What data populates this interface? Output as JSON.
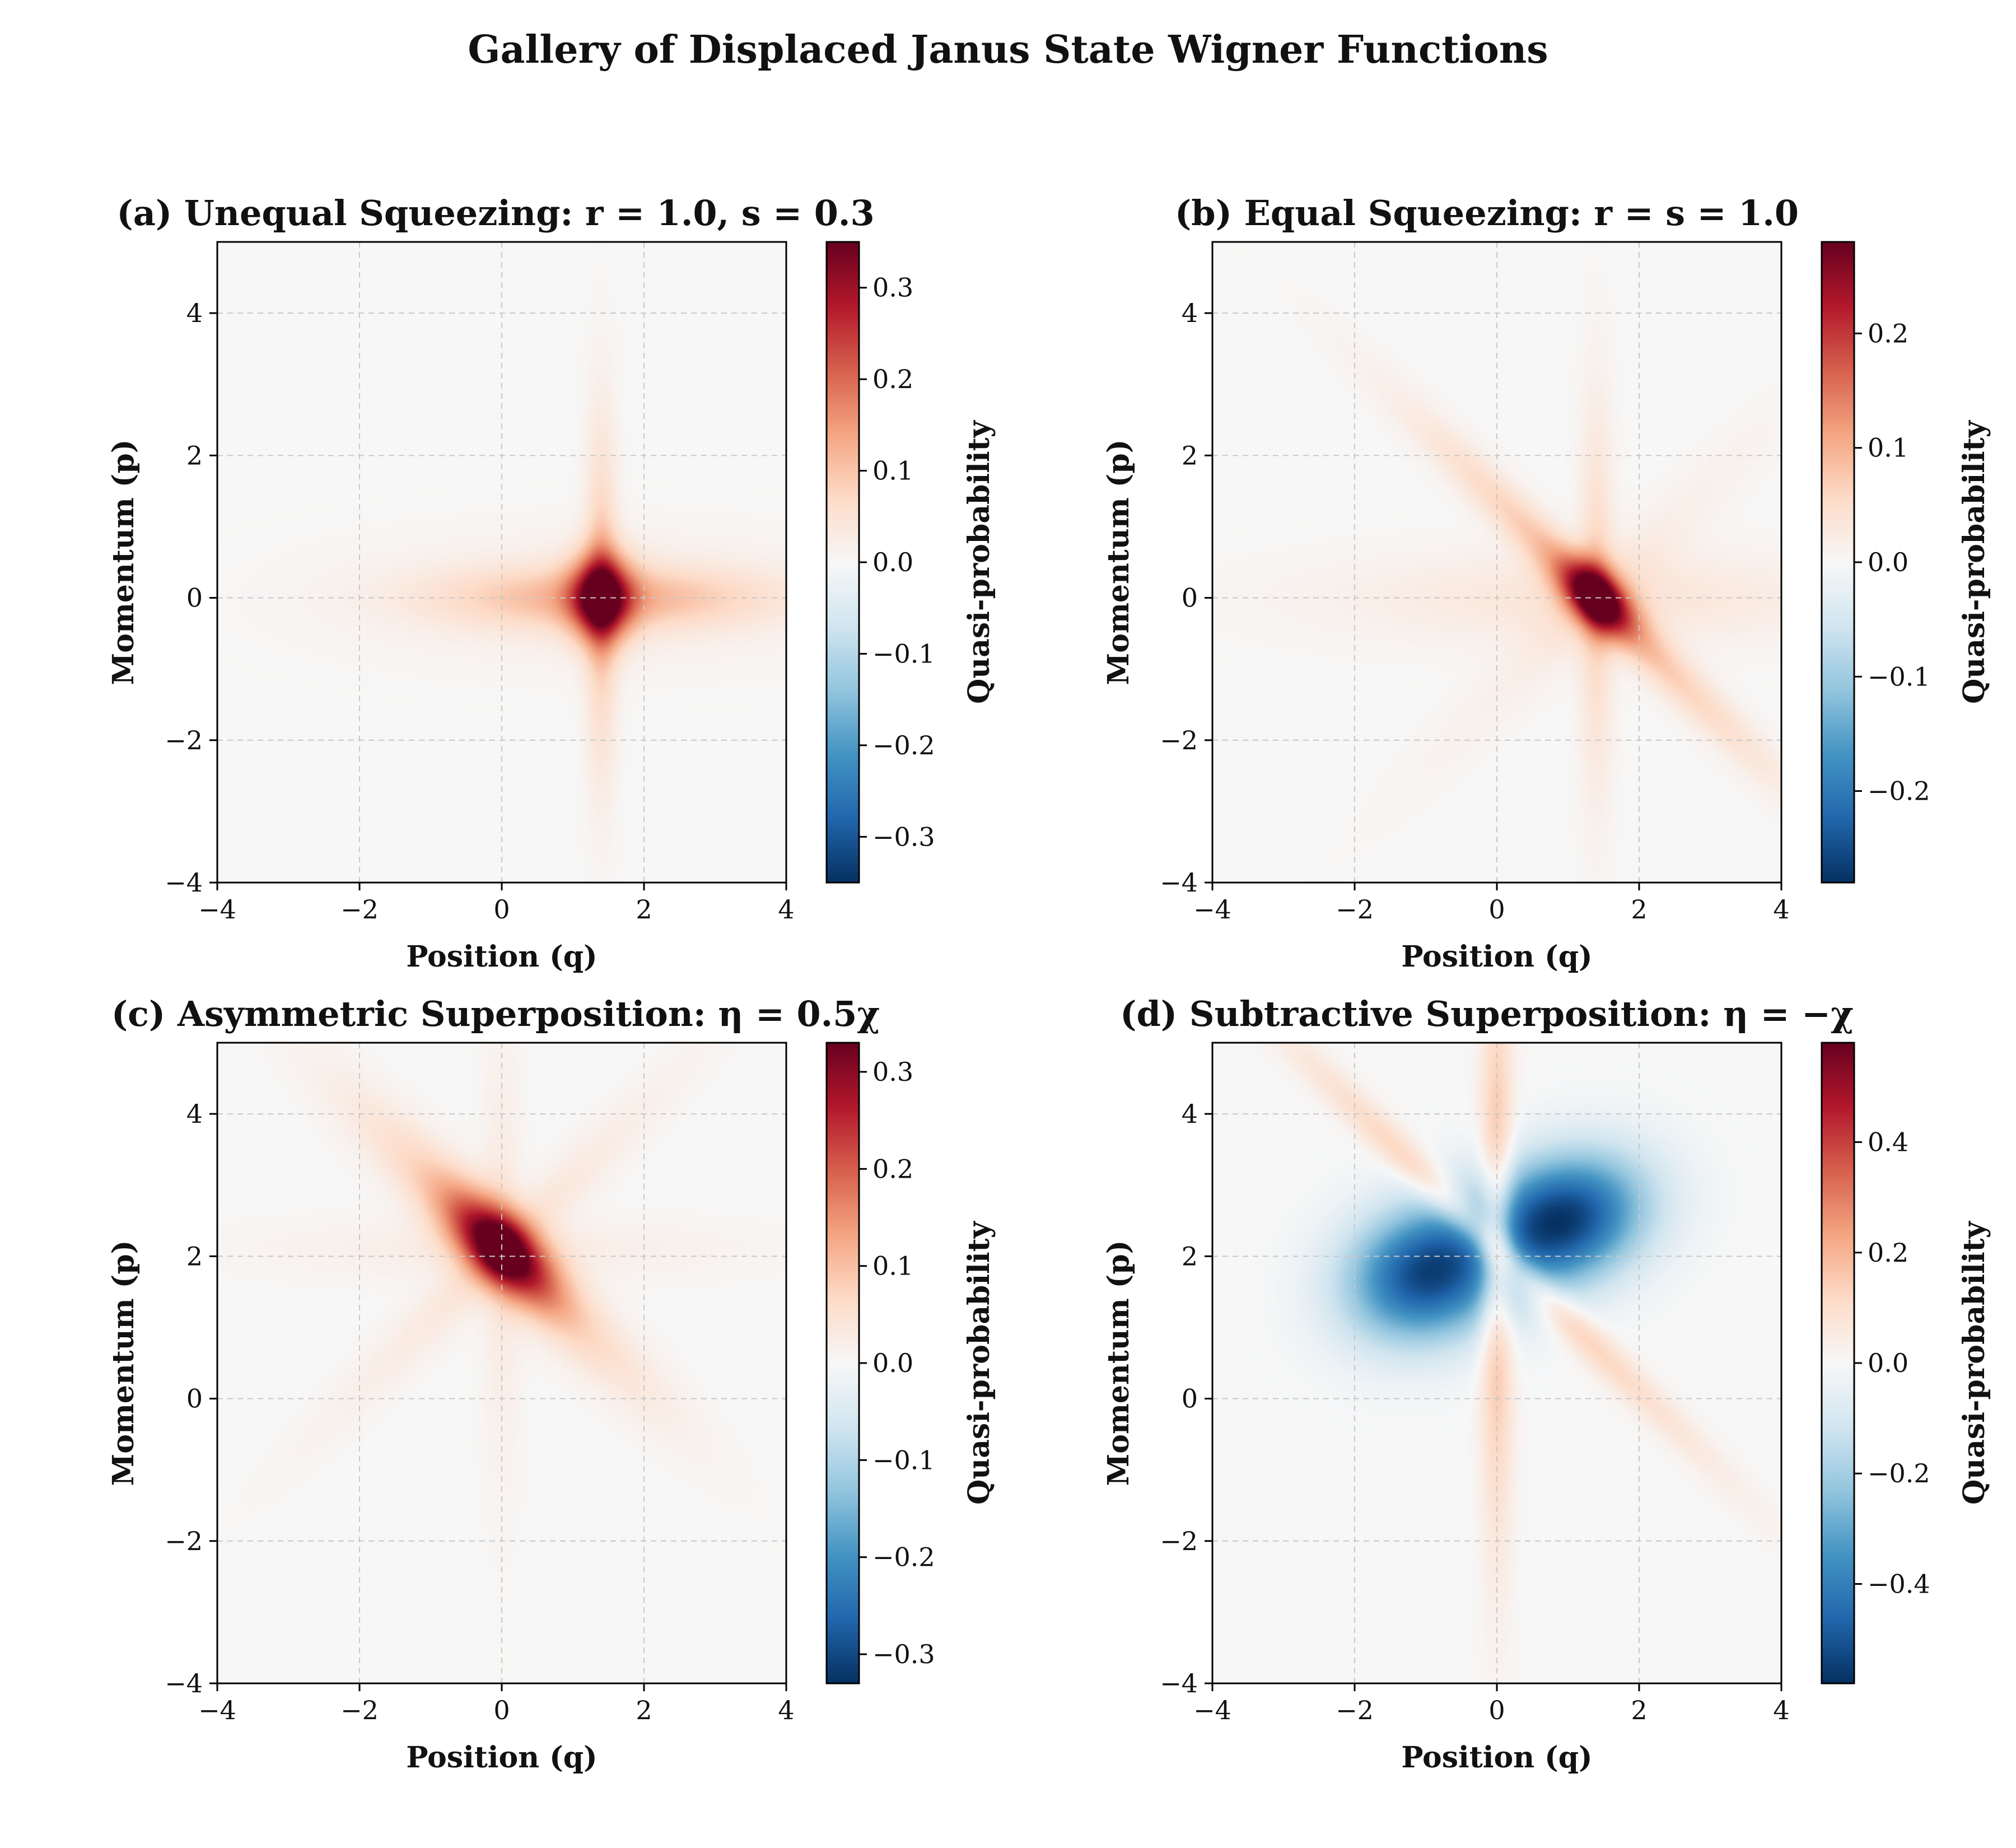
{
  "figure": {
    "title": "Gallery of Displaced Janus State Wigner Functions"
  },
  "chart_data": [
    {
      "type": "heatmap",
      "title": "(a) Unequal Squeezing: r = 1.0, s = 0.3",
      "xlabel": "Position (q)",
      "ylabel": "Momentum (p)",
      "xlim": [
        -4,
        4
      ],
      "ylim": [
        -4,
        5
      ],
      "xticks": [
        "−4",
        "−2",
        "0",
        "2",
        "4"
      ],
      "yticks": [
        "−4",
        "−2",
        "0",
        "2",
        "4"
      ],
      "grid": true,
      "colormap": "RdBu_r",
      "colorbar": {
        "label": "Quasi-probability",
        "vmin": -0.35,
        "vmax": 0.35,
        "ticks": [
          "−0.3",
          "−0.2",
          "−0.1",
          "0.0",
          "0.1",
          "0.2",
          "0.3"
        ]
      },
      "features": [
        {
          "shape": "peak",
          "center": [
            1.4,
            0.0
          ],
          "amplitude": 0.35
        },
        {
          "shape": "horizontal streak",
          "center": [
            1.4,
            0.0
          ],
          "amplitude": 0.1
        },
        {
          "shape": "vertical streak",
          "center": [
            1.4,
            0.0
          ],
          "amplitude": 0.1
        }
      ]
    },
    {
      "type": "heatmap",
      "title": "(b) Equal Squeezing: r = s = 1.0",
      "xlabel": "Position (q)",
      "ylabel": "Momentum (p)",
      "xlim": [
        -4,
        4
      ],
      "ylim": [
        -4,
        5
      ],
      "xticks": [
        "−4",
        "−2",
        "0",
        "2",
        "4"
      ],
      "yticks": [
        "−4",
        "−2",
        "0",
        "2",
        "4"
      ],
      "grid": true,
      "colormap": "RdBu_r",
      "colorbar": {
        "label": "Quasi-probability",
        "vmin": -0.28,
        "vmax": 0.28,
        "ticks": [
          "−0.2",
          "−0.1",
          "0.0",
          "0.1",
          "0.2"
        ]
      },
      "features": [
        {
          "shape": "peak",
          "center": [
            1.4,
            0.0
          ],
          "amplitude": 0.28
        },
        {
          "shape": "diagonal streak",
          "center": [
            1.4,
            0.0
          ],
          "amplitude": 0.1
        },
        {
          "shape": "vertical streak",
          "center": [
            1.4,
            0.0
          ],
          "amplitude": 0.06
        },
        {
          "shape": "horizontal streak",
          "center": [
            1.4,
            0.0
          ],
          "amplitude": 0.04
        }
      ]
    },
    {
      "type": "heatmap",
      "title": "(c) Asymmetric Superposition: η = 0.5χ",
      "xlabel": "Position (q)",
      "ylabel": "Momentum (p)",
      "xlim": [
        -4,
        4
      ],
      "ylim": [
        -4,
        5
      ],
      "xticks": [
        "−4",
        "−2",
        "0",
        "2",
        "4"
      ],
      "yticks": [
        "−4",
        "−2",
        "0",
        "2",
        "4"
      ],
      "grid": true,
      "colormap": "RdBu_r",
      "colorbar": {
        "label": "Quasi-probability",
        "vmin": -0.33,
        "vmax": 0.33,
        "ticks": [
          "−0.3",
          "−0.2",
          "−0.1",
          "0.0",
          "0.1",
          "0.2",
          "0.3"
        ]
      },
      "features": [
        {
          "shape": "peak",
          "center": [
            0.0,
            2.1
          ],
          "amplitude": 0.33
        },
        {
          "shape": "diagonal streak",
          "center": [
            0.0,
            2.1
          ],
          "amplitude": 0.1
        },
        {
          "shape": "cross streaks",
          "center": [
            0.0,
            2.1
          ],
          "amplitude": 0.04
        }
      ]
    },
    {
      "type": "heatmap",
      "title": "(d) Subtractive Superposition: η = −χ",
      "xlabel": "Position (q)",
      "ylabel": "Momentum (p)",
      "xlim": [
        -4,
        4
      ],
      "ylim": [
        -4,
        5
      ],
      "xticks": [
        "−4",
        "−2",
        "0",
        "2",
        "4"
      ],
      "yticks": [
        "−4",
        "−2",
        "0",
        "2",
        "4"
      ],
      "grid": true,
      "colormap": "RdBu_r",
      "colorbar": {
        "label": "Quasi-probability",
        "vmin": -0.58,
        "vmax": 0.58,
        "ticks": [
          "−0.4",
          "−0.2",
          "0.0",
          "0.2",
          "0.4"
        ]
      },
      "features": [
        {
          "shape": "negative lobe",
          "center": [
            -1.0,
            1.7
          ],
          "amplitude": -0.5
        },
        {
          "shape": "negative lobe",
          "center": [
            0.9,
            2.5
          ],
          "amplitude": -0.55
        },
        {
          "shape": "positive ridge",
          "center": [
            0.0,
            2.1
          ],
          "amplitude": 0.2
        }
      ]
    }
  ]
}
